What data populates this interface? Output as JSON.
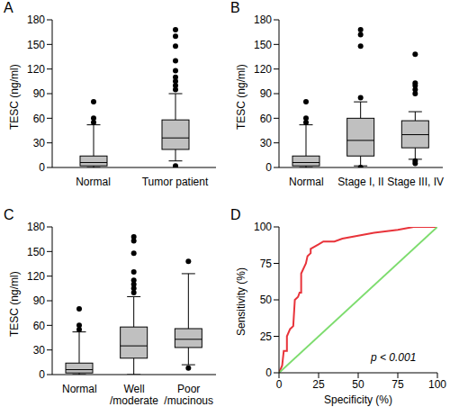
{
  "chart_data": [
    {
      "type": "box",
      "title": "A",
      "y_label": "TESC (ng/ml)",
      "categories": [
        "Normal",
        "Tumor patient"
      ],
      "color": "#c0c0c0",
      "ylim": [
        0,
        180
      ],
      "yticks": [
        0,
        30,
        60,
        90,
        120,
        150,
        180
      ],
      "boxes": [
        {
          "whisker_low": 0,
          "q1": 2,
          "median": 6,
          "q3": 14,
          "whisker_high": 52,
          "outliers": [
            55,
            60,
            80
          ]
        },
        {
          "whisker_low": 8,
          "q1": 22,
          "median": 36,
          "q3": 58,
          "whisker_high": 90,
          "outliers": [
            2,
            0,
            95,
            100,
            105,
            110,
            118,
            130,
            148,
            160,
            168
          ]
        }
      ]
    },
    {
      "type": "box",
      "title": "B",
      "y_label": "TESC (ng/ml)",
      "categories": [
        "Normal",
        "Stage I, II",
        "Stage III, IV"
      ],
      "color": "#c0c0c0",
      "ylim": [
        0,
        180
      ],
      "yticks": [
        0,
        30,
        60,
        90,
        120,
        150,
        180
      ],
      "boxes": [
        {
          "whisker_low": 0,
          "q1": 2,
          "median": 6,
          "q3": 14,
          "whisker_high": 52,
          "outliers": [
            55,
            60,
            80
          ]
        },
        {
          "whisker_low": 2,
          "q1": 14,
          "median": 33,
          "q3": 60,
          "whisker_high": 80,
          "outliers": [
            0,
            85,
            148,
            162,
            168
          ]
        },
        {
          "whisker_low": 10,
          "q1": 24,
          "median": 40,
          "q3": 57,
          "whisker_high": 68,
          "outliers": [
            5,
            8,
            90,
            95,
            100,
            103,
            138
          ]
        }
      ]
    },
    {
      "type": "box",
      "title": "C",
      "y_label": "TESC (ng/ml)",
      "categories": [
        "Normal",
        "Well\n/moderate",
        "Poor\n/mucinous"
      ],
      "color": "#c0c0c0",
      "ylim": [
        0,
        180
      ],
      "yticks": [
        0,
        30,
        60,
        90,
        120,
        150,
        180
      ],
      "boxes": [
        {
          "whisker_low": 0,
          "q1": 2,
          "median": 6,
          "q3": 14,
          "whisker_high": 52,
          "outliers": [
            55,
            60,
            80
          ]
        },
        {
          "whisker_low": 0,
          "q1": 20,
          "median": 35,
          "q3": 58,
          "whisker_high": 95,
          "outliers": [
            100,
            105,
            110,
            115,
            125,
            148,
            163,
            168
          ]
        },
        {
          "whisker_low": 12,
          "q1": 33,
          "median": 43,
          "q3": 56,
          "whisker_high": 123,
          "outliers": [
            8,
            138
          ]
        }
      ]
    },
    {
      "type": "line",
      "title": "D",
      "x_label": "Specificity (%)",
      "y_label": "Sensitivity (%)",
      "xlim": [
        0,
        100
      ],
      "xticks": [
        0,
        25,
        50,
        75,
        100
      ],
      "ylim": [
        0,
        100
      ],
      "yticks": [
        0,
        25,
        50,
        75,
        100
      ],
      "annotation": "p < 0.001",
      "series": [
        {
          "color": "#e8333a",
          "x": [
            0,
            2,
            3,
            5,
            5,
            7,
            9,
            10,
            12,
            13,
            14,
            14,
            17,
            18,
            20,
            20,
            25,
            28,
            35,
            40,
            50,
            60,
            75,
            85,
            100
          ],
          "values": [
            0,
            5,
            15,
            15,
            25,
            30,
            32,
            50,
            52,
            55,
            55,
            68,
            75,
            80,
            82,
            85,
            88,
            90,
            90,
            92,
            94,
            96,
            98,
            100,
            100
          ]
        },
        {
          "color": "#7ddc6e",
          "x": [
            0,
            100
          ],
          "values": [
            0,
            100
          ]
        }
      ]
    }
  ]
}
